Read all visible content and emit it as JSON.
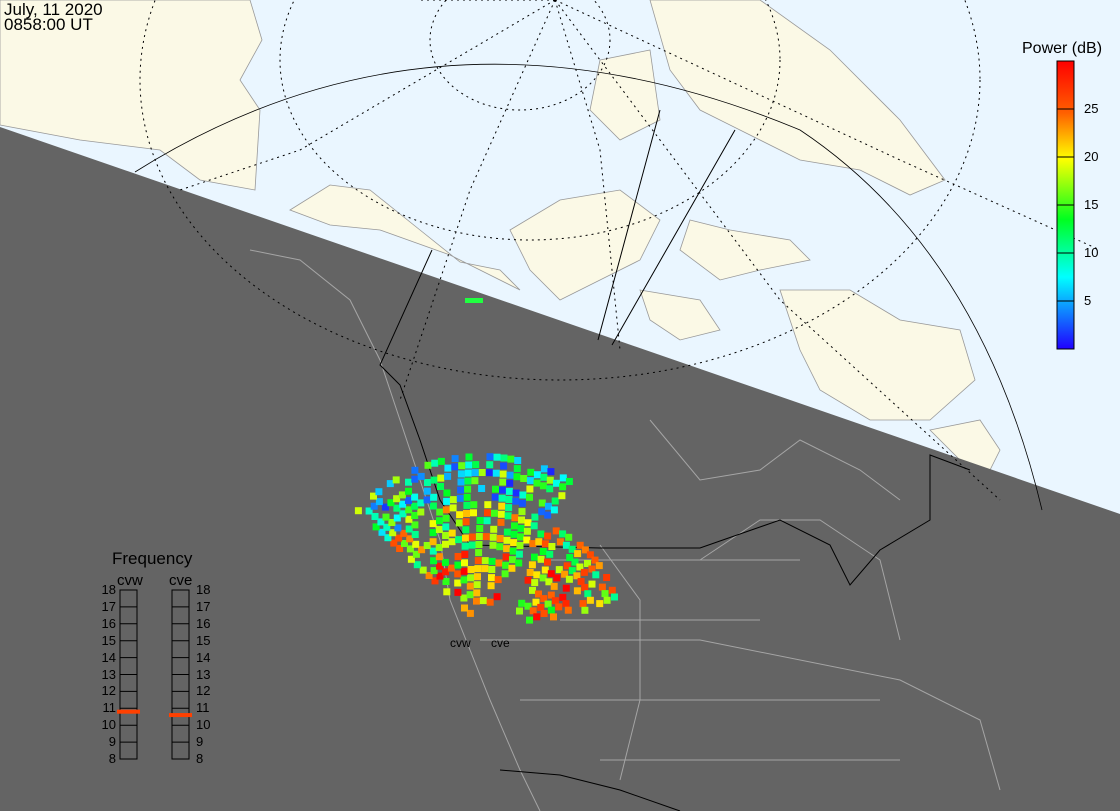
{
  "header": {
    "date": "July, 11 2020",
    "time": "0858:00 UT"
  },
  "colorbar": {
    "title": "Power (dB)",
    "range": [
      0,
      30
    ],
    "ticks": [
      5,
      10,
      15,
      20,
      25
    ],
    "tick_labels": [
      "5",
      "10",
      "15",
      "20",
      "25"
    ]
  },
  "frequency_panel": {
    "title": "Frequency",
    "range": [
      8,
      18
    ],
    "tick_labels": [
      "8",
      "9",
      "10",
      "11",
      "12",
      "13",
      "14",
      "15",
      "16",
      "17",
      "18"
    ],
    "radars": [
      {
        "name": "cvw",
        "frequency_mhz": 10.8,
        "marker_color": "#ff4000"
      },
      {
        "name": "cve",
        "frequency_mhz": 10.6,
        "marker_color": "#ff4000"
      }
    ]
  },
  "map": {
    "radar_labels": [
      "cvw",
      "cve"
    ],
    "colors": {
      "ocean": "#eaf6ff",
      "land": "#fbf9e6",
      "night": "#646464",
      "borders": "#000000",
      "night_coast": "#a0a0a0"
    },
    "grid": "dotted magnetic lat/lon lines"
  }
}
